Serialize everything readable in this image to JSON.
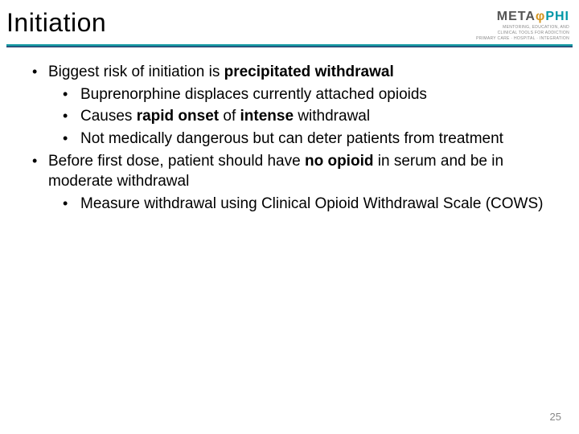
{
  "title": "Initiation",
  "logo": {
    "meta": "META",
    "phi_symbol": "φ",
    "phi": "PHI",
    "sub1": "MENTORING, EDUCATION, AND",
    "sub2": "CLINICAL TOOLS FOR ADDICTION",
    "sub3": "PRIMARY CARE · HOSPITAL · INTEGRATION"
  },
  "bullets": {
    "b1_pre": "Biggest risk of initiation is ",
    "b1_bold": "precipitated withdrawal",
    "b1_1": "Buprenorphine displaces currently attached opioids",
    "b1_2_pre": "Causes ",
    "b1_2_bold": "rapid onset ",
    "b1_2_mid": "of ",
    "b1_2_bold2": "intense ",
    "b1_2_post": "withdrawal",
    "b1_3": "Not medically dangerous but can deter patients from treatment",
    "b2_pre": "Before first dose, patient should have ",
    "b2_bold": "no opioid ",
    "b2_post": "in serum and be in moderate withdrawal",
    "b2_1": "Measure withdrawal using Clinical Opioid Withdrawal Scale (COWS)"
  },
  "page_number": "25",
  "colors": {
    "rule_teal": "#169ba5",
    "rule_navy": "#2a3e6e",
    "logo_gold": "#d4941e",
    "logo_teal": "#0097a7"
  }
}
